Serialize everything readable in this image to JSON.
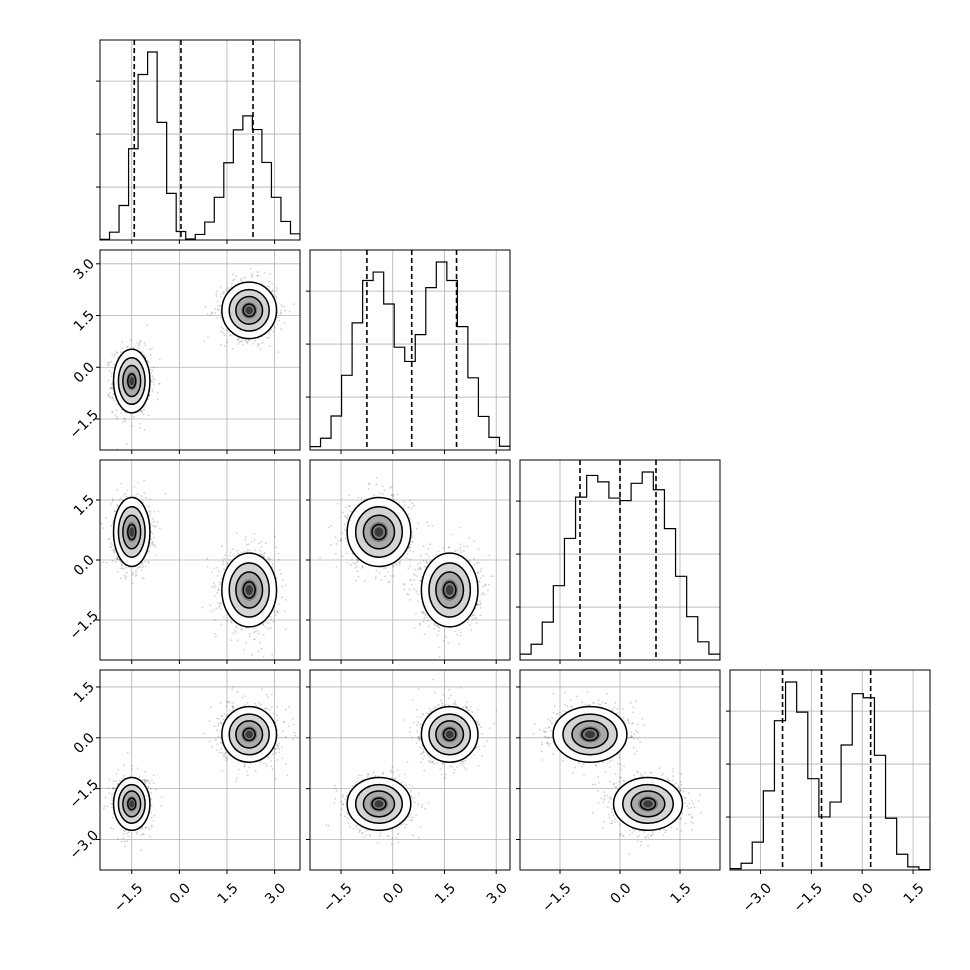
{
  "chart_data": {
    "type": "corner",
    "num_params": 4,
    "params": [
      {
        "range": [
          -2.5,
          3.8
        ],
        "ticks": [
          -1.5,
          0.0,
          1.5,
          3.0
        ],
        "tick_labels": [
          "−1.5",
          "0.0",
          "1.5",
          "3.0"
        ]
      },
      {
        "range": [
          -2.4,
          3.4
        ],
        "ticks": [
          -1.5,
          0.0,
          1.5,
          3.0
        ],
        "tick_labels": [
          "−1.5",
          "0.0",
          "1.5",
          "3.0"
        ]
      },
      {
        "range": [
          -2.5,
          2.5
        ],
        "ticks": [
          -1.5,
          0.0,
          1.5
        ],
        "tick_labels": [
          "−1.5",
          "0.0",
          "1.5"
        ]
      },
      {
        "range": [
          -3.9,
          2.0
        ],
        "ticks": [
          -3.0,
          -1.5,
          0.0,
          1.5
        ],
        "tick_labels": [
          "−3.0",
          "−1.5",
          "0.0",
          "1.5"
        ]
      }
    ],
    "modes": [
      {
        "center": [
          -1.5,
          -0.4,
          0.7,
          -1.95
        ],
        "sigma": [
          0.28,
          0.45,
          0.42,
          0.38
        ],
        "weight": 0.5
      },
      {
        "center": [
          2.2,
          1.65,
          -0.75,
          0.1
        ],
        "sigma": [
          0.42,
          0.4,
          0.45,
          0.4
        ],
        "weight": 0.5
      }
    ],
    "histograms": [
      {
        "edges_range": [
          -2.5,
          3.8
        ],
        "counts": [
          0.2,
          2.4,
          10.6,
          28,
          50.8,
          57.7,
          36.1,
          14.3,
          2.6,
          0.3,
          1.7,
          5.5,
          13.1,
          23.7,
          33.8,
          38.1,
          33.9,
          23.8,
          13.1,
          5.7,
          1.9
        ],
        "quantiles": [
          -1.42,
          0.05,
          2.32
        ]
      },
      {
        "edges_range": [
          -2.4,
          3.4
        ],
        "counts": [
          0.8,
          2.8,
          8.1,
          17.8,
          30.3,
          40.4,
          42.4,
          34.8,
          24.5,
          21.1,
          27.5,
          38.7,
          44.8,
          40.4,
          29.4,
          17.2,
          8,
          3,
          0.9
        ],
        "quantiles": [
          -0.75,
          0.55,
          1.85
        ]
      },
      {
        "edges_range": [
          -2.5,
          2.5
        ],
        "counts": [
          1.2,
          3.2,
          7.7,
          15.1,
          24.7,
          33.1,
          37.5,
          36.2,
          32.9,
          32.4,
          35.9,
          38.2,
          34.6,
          26.7,
          17,
          8.8,
          3.7,
          1.2
        ],
        "quantiles": [
          -1.0,
          0.0,
          0.9
        ]
      },
      {
        "edges_range": [
          -3.9,
          2.0
        ],
        "counts": [
          0.3,
          1.5,
          6.2,
          17.6,
          33.2,
          41.8,
          35.1,
          20.3,
          11.8,
          15.1,
          27.8,
          39.2,
          38.3,
          25.5,
          11.5,
          3.5,
          0.7,
          0.1
        ],
        "quantiles": [
          -2.35,
          -1.2,
          0.25
        ]
      }
    ]
  }
}
